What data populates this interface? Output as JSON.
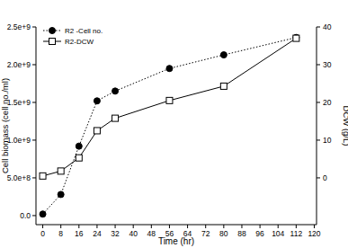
{
  "chart_data": {
    "type": "line",
    "x_label": "Time (hr)",
    "y_label": "Cell biomass (cell no./ml)",
    "y2_label": "DCW (g/L)",
    "x": [
      0,
      8,
      16,
      24,
      32,
      56,
      80,
      112
    ],
    "xlim": [
      -3,
      121
    ],
    "xticks": [
      0,
      8,
      16,
      24,
      32,
      40,
      48,
      56,
      64,
      72,
      80,
      88,
      96,
      104,
      112,
      120
    ],
    "ylim": [
      -120000000,
      2500000000
    ],
    "yticks": [
      {
        "value": 0,
        "label": "0.0"
      },
      {
        "value": 500000000,
        "label": "5.0e+8"
      },
      {
        "value": 1000000000,
        "label": "1.0e+9"
      },
      {
        "value": 1500000000,
        "label": "1.5e+9"
      },
      {
        "value": 2000000000,
        "label": "2.0e+9"
      },
      {
        "value": 2500000000,
        "label": "2.5e+9"
      }
    ],
    "y2lim": [
      -12.4,
      40
    ],
    "y2ticks": [
      0,
      10,
      20,
      30,
      40
    ],
    "legend": "upper-left",
    "series": [
      {
        "name": "R2 -Cell no.",
        "color": "#000000",
        "marker": "circle",
        "line_style": "dotted",
        "values": [
          20000000,
          280000000,
          920000000,
          1520000000,
          1650000000,
          1950000000,
          2130000000,
          2360000000
        ]
      },
      {
        "name": "R2-DCW",
        "color": "#000000",
        "marker": "open-square",
        "line_style": "solid",
        "axis": "y2",
        "values": [
          0.5,
          1.8,
          5.3,
          12.5,
          15.8,
          20.5,
          24.3,
          37
        ]
      }
    ]
  }
}
